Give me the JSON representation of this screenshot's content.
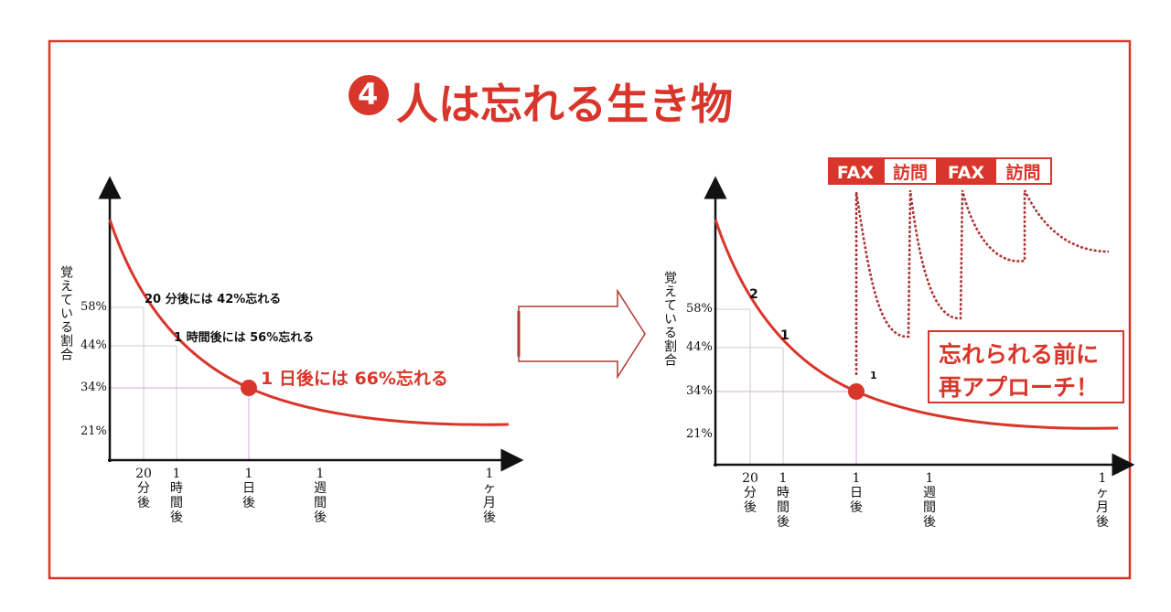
{
  "title": {
    "number": "4",
    "text": "人は忘れる生き物"
  },
  "left_chart": {
    "y_axis_label": "覚えている割合",
    "y_labels": [
      "58%",
      "44%",
      "34%",
      "21%"
    ],
    "x_labels": [
      [
        "20",
        "分",
        "後"
      ],
      [
        "1",
        "時",
        "間",
        "後"
      ],
      [
        "1",
        "日",
        "後"
      ],
      [
        "1",
        "週",
        "間",
        "後"
      ],
      [
        "1",
        "ヶ",
        "月",
        "後"
      ]
    ],
    "annotations": [
      "20 分後には 42%忘れる",
      "1 時間後には 56%忘れる",
      "1 日後には 66%忘れる"
    ]
  },
  "right_chart": {
    "y_axis_label": "覚えている割合",
    "y_labels": [
      "58%",
      "44%",
      "34%",
      "21%"
    ],
    "x_labels": [
      [
        "20",
        "分",
        "後"
      ],
      [
        "1",
        "時",
        "間",
        "後"
      ],
      [
        "1",
        "日",
        "後"
      ],
      [
        "1",
        "週",
        "間",
        "後"
      ],
      [
        "1",
        "ヶ",
        "月",
        "後"
      ]
    ],
    "point_labels": [
      "2",
      "1",
      "1"
    ],
    "tags": [
      "FAX",
      "訪問",
      "FAX",
      "訪問"
    ],
    "callout": [
      "忘れられる前に",
      "再アプローチ！"
    ]
  }
}
